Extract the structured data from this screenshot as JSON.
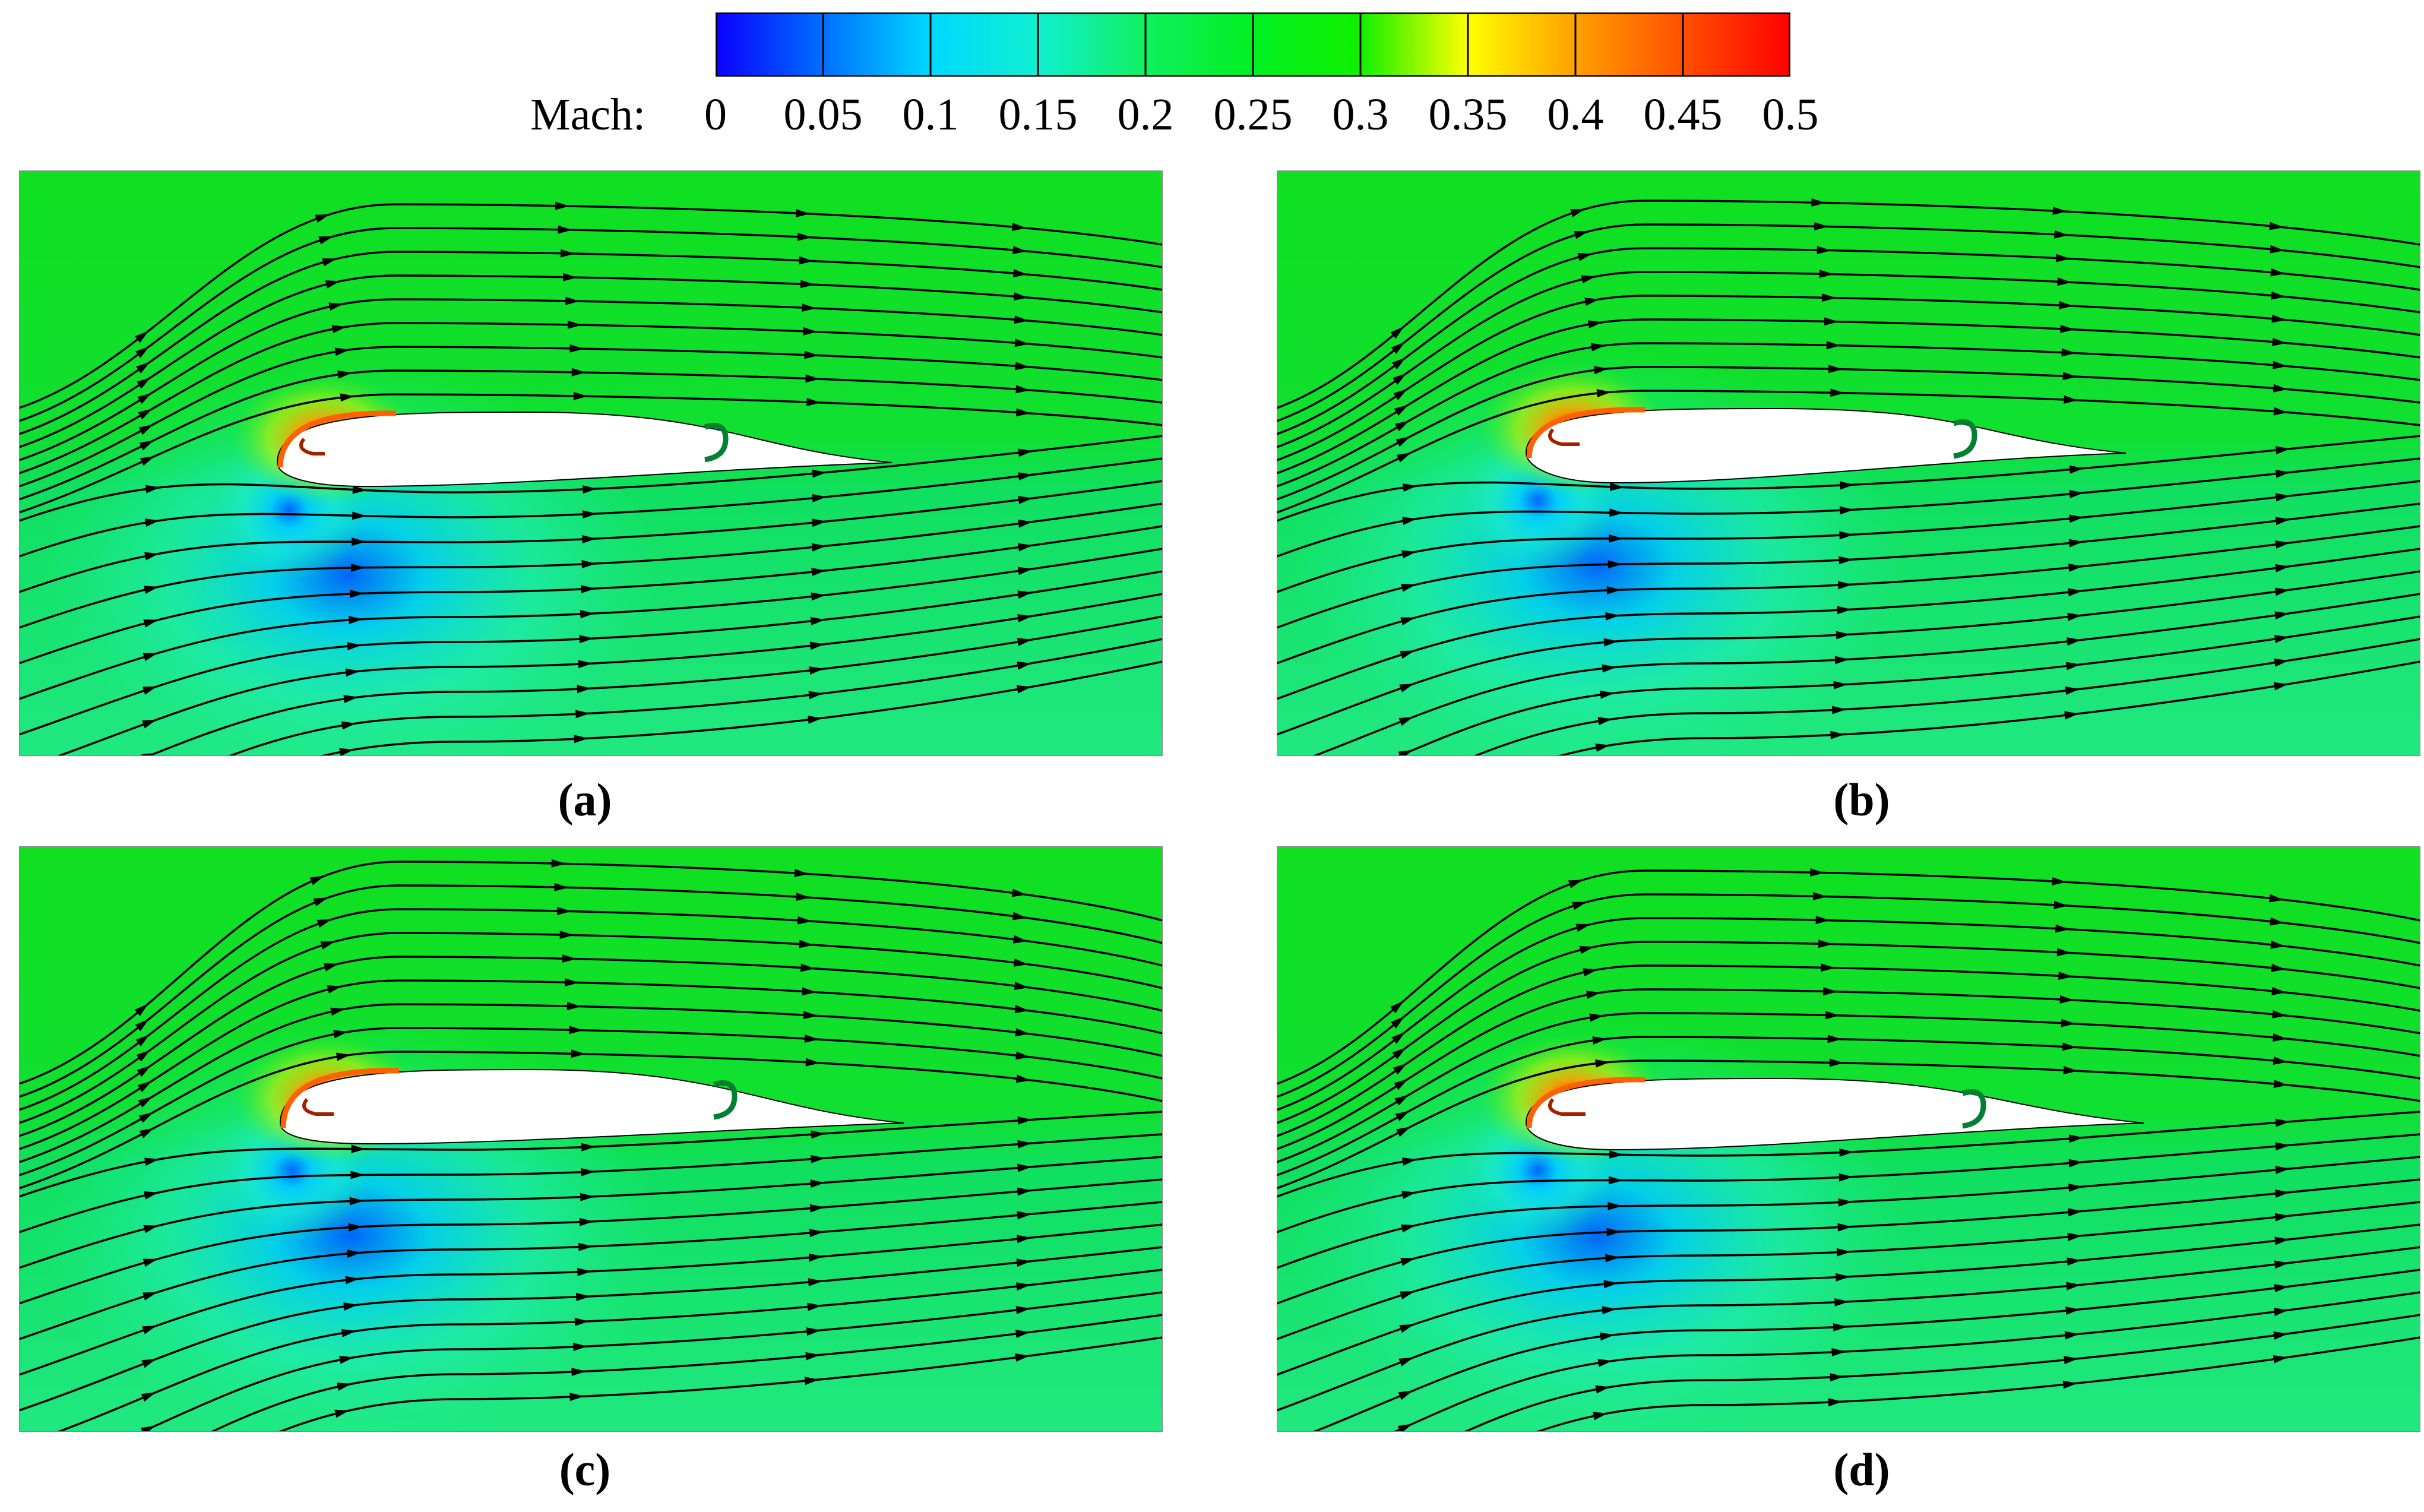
{
  "colorbar": {
    "label": "Mach:",
    "ticks": [
      "0",
      "0.05",
      "0.1",
      "0.15",
      "0.2",
      "0.25",
      "0.3",
      "0.35",
      "0.4",
      "0.45",
      "0.5"
    ],
    "range": [
      0,
      0.5
    ],
    "colors": {
      "c0": "#0a00ff",
      "c1": "#0090ff",
      "c2": "#00ffff",
      "c3": "#1af0c2",
      "c4": "#00ff40",
      "c5": "#00f000",
      "c6": "#30ff00",
      "c7": "#ffff00",
      "c8": "#ff9800",
      "c9": "#ff5000",
      "c10": "#ff0000"
    }
  },
  "panels": [
    {
      "caption": "(a)"
    },
    {
      "caption": "(b)"
    },
    {
      "caption": "(c)"
    },
    {
      "caption": "(d)"
    }
  ]
}
